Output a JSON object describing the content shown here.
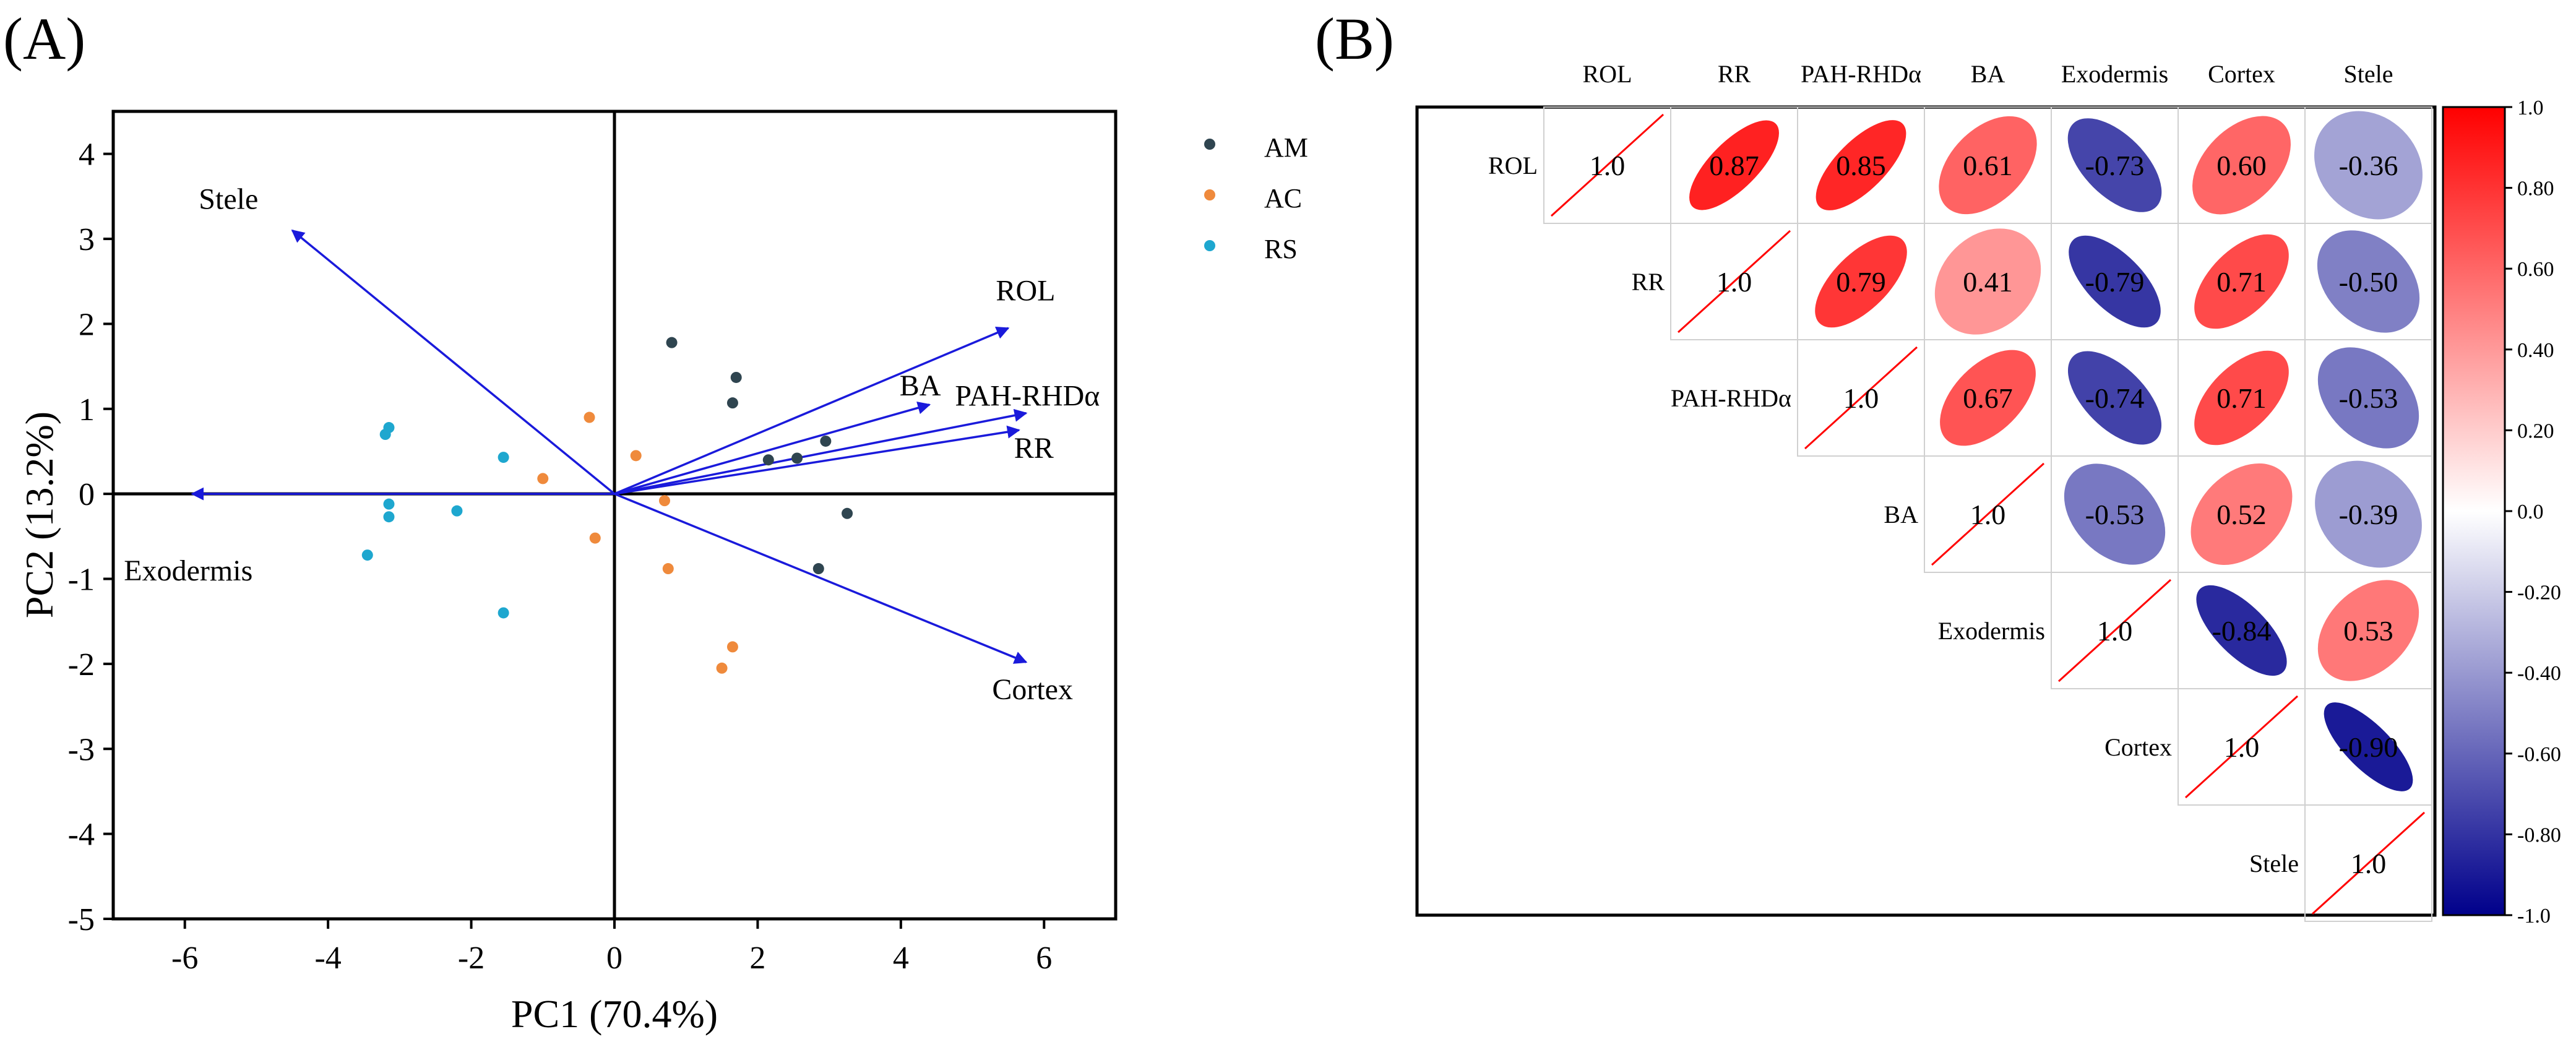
{
  "chart_data": [
    {
      "type": "scatter",
      "panel_label": "(A)",
      "title": "",
      "xlabel": "PC1 (70.4%)",
      "ylabel": "PC2 (13.2%)",
      "xlim": [
        -7,
        7
      ],
      "ylim": [
        -5,
        4.5
      ],
      "xticks": [
        -6,
        -4,
        -2,
        0,
        2,
        4,
        6
      ],
      "yticks": [
        -5,
        -4,
        -3,
        -2,
        -1,
        0,
        1,
        2,
        3,
        4
      ],
      "legend_position": "top-right (outside)",
      "series": [
        {
          "name": "AM",
          "color": "#2f4550",
          "points": [
            [
              0.8,
              1.78
            ],
            [
              1.7,
              1.37
            ],
            [
              1.65,
              1.07
            ],
            [
              2.15,
              0.4
            ],
            [
              2.55,
              0.42
            ],
            [
              2.95,
              0.62
            ],
            [
              3.25,
              -0.23
            ],
            [
              2.85,
              -0.88
            ]
          ]
        },
        {
          "name": "AC",
          "color": "#ef8a3c",
          "points": [
            [
              -0.35,
              0.9
            ],
            [
              0.3,
              0.45
            ],
            [
              -1.0,
              0.18
            ],
            [
              0.7,
              -0.08
            ],
            [
              -0.27,
              -0.52
            ],
            [
              0.75,
              -0.88
            ],
            [
              1.65,
              -1.8
            ],
            [
              1.5,
              -2.05
            ]
          ]
        },
        {
          "name": "RS",
          "color": "#1ea7cf",
          "points": [
            [
              -3.15,
              0.78
            ],
            [
              -3.2,
              0.7
            ],
            [
              -1.55,
              0.43
            ],
            [
              -3.15,
              -0.12
            ],
            [
              -2.2,
              -0.2
            ],
            [
              -3.15,
              -0.27
            ],
            [
              -3.45,
              -0.72
            ],
            [
              -1.55,
              -1.4
            ]
          ]
        }
      ],
      "loadings": [
        {
          "name": "Stele",
          "x": -4.5,
          "y": 3.1
        },
        {
          "name": "Exodermis",
          "x": -5.9,
          "y": 0.0
        },
        {
          "name": "ROL",
          "x": 5.5,
          "y": 1.95
        },
        {
          "name": "BA",
          "x": 4.4,
          "y": 1.05
        },
        {
          "name": "PAH-RHDα",
          "x": 5.75,
          "y": 0.95
        },
        {
          "name": "RR",
          "x": 5.65,
          "y": 0.75
        },
        {
          "name": "Cortex",
          "x": 5.75,
          "y": -1.98
        }
      ],
      "arrow_color": "#1a1adb"
    },
    {
      "type": "heatmap",
      "panel_label": "(B)",
      "title": "",
      "variables": [
        "ROL",
        "RR",
        "PAH-RHDα",
        "BA",
        "Exodermis",
        "Cortex",
        "Stele"
      ],
      "matrix_upper": [
        [
          1.0,
          0.87,
          0.85,
          0.61,
          -0.73,
          0.6,
          -0.36
        ],
        [
          null,
          1.0,
          0.79,
          0.41,
          -0.79,
          0.71,
          -0.5
        ],
        [
          null,
          null,
          1.0,
          0.67,
          -0.74,
          0.71,
          -0.53
        ],
        [
          null,
          null,
          null,
          1.0,
          -0.53,
          0.52,
          -0.39
        ],
        [
          null,
          null,
          null,
          null,
          1.0,
          -0.84,
          0.53
        ],
        [
          null,
          null,
          null,
          null,
          null,
          1.0,
          -0.9
        ],
        [
          null,
          null,
          null,
          null,
          null,
          null,
          1.0
        ]
      ],
      "diagonal_labels": [
        "1.0",
        "1.0",
        "1.0",
        "1.0",
        "1.0",
        "1.0",
        "1.0"
      ],
      "colorbar": {
        "range": [
          -1.0,
          1.0
        ],
        "ticks": [
          "1.0",
          "0.80",
          "0.60",
          "0.40",
          "0.20",
          "0.0",
          "-0.20",
          "-0.40",
          "-0.60",
          "-0.80",
          "-1.0"
        ],
        "low_color": "#00008b",
        "mid_color": "#ffffff",
        "high_color": "#ff0000"
      },
      "glyph": "ellipse"
    }
  ]
}
